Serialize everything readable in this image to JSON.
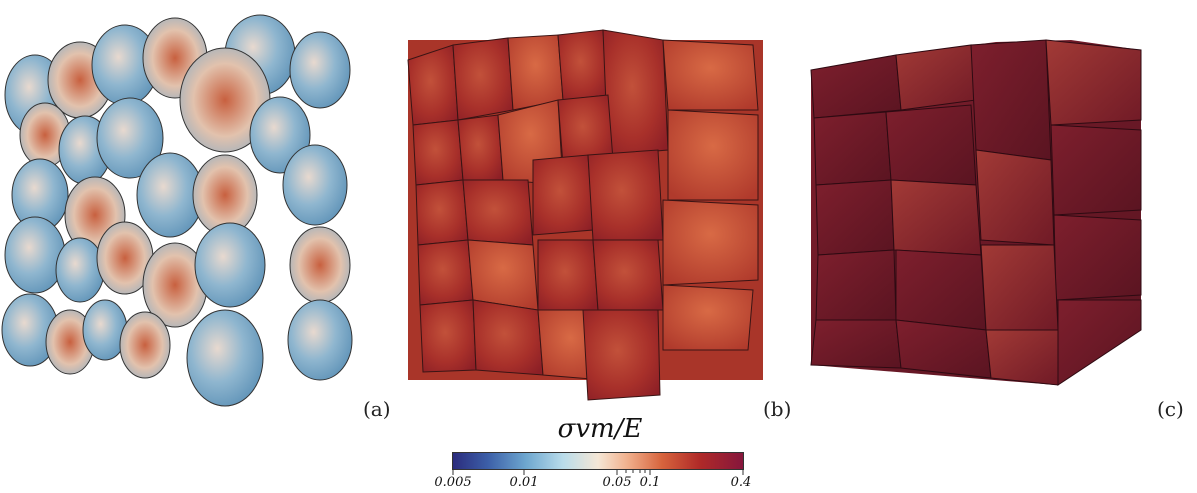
{
  "panels": [
    {
      "label": "(a)",
      "description_color": "blue-red-mix"
    },
    {
      "label": "(b)",
      "description_color": "red"
    },
    {
      "label": "(c)",
      "description_color": "dark-red"
    }
  ],
  "colorbar": {
    "title": "σvm/E",
    "tick_labels": [
      "0.005",
      "0.01",
      "0.05",
      "0.1",
      "0.4"
    ],
    "colors": [
      "#2b2c7d",
      "#6da6cf",
      "#f5e7d6",
      "#d7643d",
      "#86163c"
    ]
  }
}
